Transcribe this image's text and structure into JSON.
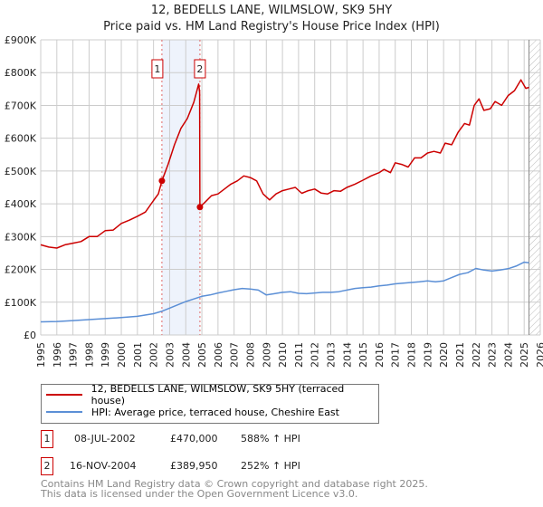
{
  "chart_data": {
    "type": "line",
    "title": "12, BEDELLS LANE, WILMSLOW, SK9 5HY",
    "subtitle": "Price paid vs. HM Land Registry's House Price Index (HPI)",
    "xlim": [
      1995,
      2026
    ],
    "ylim": [
      0,
      900000
    ],
    "y_ticks": [
      0,
      100000,
      200000,
      300000,
      400000,
      500000,
      600000,
      700000,
      800000,
      900000
    ],
    "y_tick_labels": [
      "£0",
      "£100K",
      "£200K",
      "£300K",
      "£400K",
      "£500K",
      "£600K",
      "£700K",
      "£800K",
      "£900K"
    ],
    "x_ticks": [
      "1995",
      "1996",
      "1997",
      "1998",
      "1999",
      "2000",
      "2001",
      "2002",
      "2003",
      "2004",
      "2005",
      "2006",
      "2007",
      "2008",
      "2009",
      "2010",
      "2011",
      "2012",
      "2013",
      "2014",
      "2015",
      "2016",
      "2017",
      "2018",
      "2019",
      "2020",
      "2021",
      "2022",
      "2023",
      "2024",
      "2025",
      "2026"
    ],
    "grid": true,
    "colors": {
      "property": "#cc0000",
      "hpi": "#5b8fd6",
      "shade": "#eef3fc"
    },
    "shaded_range": [
      2002.52,
      2004.88
    ],
    "forecast_from": 2025.3,
    "series": [
      {
        "name": "12, BEDELLS LANE, WILMSLOW, SK9 5HY (terraced house)",
        "x": [
          1995,
          1995.5,
          1996,
          1996.5,
          1997,
          1997.5,
          1998,
          1998.5,
          1999,
          1999.5,
          2000,
          2000.5,
          2001,
          2001.5,
          2002,
          2002.3,
          2002.52,
          2002.9,
          2003.3,
          2003.7,
          2004.1,
          2004.5,
          2004.8,
          2004.86,
          2004.88,
          2005.2,
          2005.6,
          2006,
          2006.4,
          2006.8,
          2007.2,
          2007.6,
          2008,
          2008.4,
          2008.8,
          2009.2,
          2009.6,
          2010,
          2010.4,
          2010.8,
          2011.2,
          2011.6,
          2012,
          2012.4,
          2012.8,
          2013.2,
          2013.6,
          2014,
          2014.5,
          2015,
          2015.5,
          2016,
          2016.3,
          2016.7,
          2017,
          2017.4,
          2017.8,
          2018.2,
          2018.6,
          2019,
          2019.4,
          2019.8,
          2020.1,
          2020.5,
          2020.9,
          2021.3,
          2021.6,
          2021.9,
          2022.2,
          2022.5,
          2022.9,
          2023.2,
          2023.6,
          2024,
          2024.4,
          2024.8,
          2025.1,
          2025.3
        ],
        "values": [
          275000,
          268000,
          265000,
          275000,
          280000,
          285000,
          300000,
          300000,
          318000,
          320000,
          340000,
          350000,
          362000,
          375000,
          410000,
          430000,
          470000,
          520000,
          580000,
          630000,
          660000,
          710000,
          765000,
          740000,
          389950,
          405000,
          425000,
          430000,
          445000,
          460000,
          470000,
          485000,
          480000,
          470000,
          430000,
          412000,
          430000,
          440000,
          445000,
          450000,
          432000,
          440000,
          445000,
          433000,
          430000,
          440000,
          438000,
          450000,
          460000,
          472000,
          485000,
          495000,
          505000,
          495000,
          525000,
          520000,
          512000,
          540000,
          540000,
          555000,
          560000,
          555000,
          585000,
          580000,
          618000,
          645000,
          640000,
          700000,
          720000,
          685000,
          690000,
          712000,
          700000,
          730000,
          745000,
          778000,
          752000,
          755000
        ]
      },
      {
        "name": "HPI: Average price, terraced house, Cheshire East",
        "x": [
          1995,
          1996,
          1997,
          1998,
          1999,
          2000,
          2001,
          2002,
          2002.5,
          2003,
          2003.5,
          2004,
          2004.5,
          2005,
          2005.5,
          2006,
          2006.5,
          2007,
          2007.5,
          2008,
          2008.5,
          2009,
          2009.5,
          2010,
          2010.5,
          2011,
          2011.5,
          2012,
          2012.5,
          2013,
          2013.5,
          2014,
          2014.5,
          2015,
          2015.5,
          2016,
          2016.5,
          2017,
          2017.5,
          2018,
          2018.5,
          2019,
          2019.5,
          2020,
          2020.5,
          2021,
          2021.5,
          2022,
          2022.5,
          2023,
          2023.5,
          2024,
          2024.5,
          2025,
          2025.3
        ],
        "values": [
          40000,
          41000,
          44000,
          47000,
          50000,
          53000,
          57000,
          65000,
          72000,
          82000,
          92000,
          102000,
          110000,
          118000,
          122000,
          128000,
          133000,
          138000,
          142000,
          140000,
          137000,
          122000,
          126000,
          130000,
          132000,
          127000,
          126000,
          128000,
          130000,
          130000,
          132000,
          137000,
          142000,
          144000,
          146000,
          150000,
          152000,
          156000,
          158000,
          160000,
          162000,
          165000,
          162000,
          165000,
          175000,
          185000,
          190000,
          203000,
          198000,
          195000,
          198000,
          202000,
          210000,
          222000,
          220000
        ]
      }
    ],
    "annotations": [
      {
        "label": "1",
        "x": 2002.52
      },
      {
        "label": "2",
        "x": 2004.88
      }
    ]
  },
  "legend": {
    "items": [
      "12, BEDELLS LANE, WILMSLOW, SK9 5HY (terraced house)",
      "HPI: Average price, terraced house, Cheshire East"
    ]
  },
  "transactions": [
    {
      "id": "1",
      "date": "08-JUL-2002",
      "price": "£470,000",
      "hpi": "588% ↑ HPI"
    },
    {
      "id": "2",
      "date": "16-NOV-2004",
      "price": "£389,950",
      "hpi": "252% ↑ HPI"
    }
  ],
  "footer": {
    "line1": "Contains HM Land Registry data © Crown copyright and database right 2025.",
    "line2": "This data is licensed under the Open Government Licence v3.0."
  }
}
